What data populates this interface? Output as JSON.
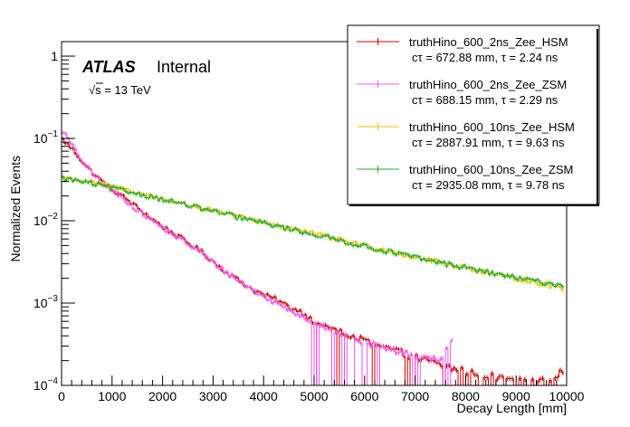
{
  "chart_data": {
    "type": "line",
    "style": "step-histogram",
    "title": "",
    "xlabel": "Decay Length [mm]",
    "ylabel": "Normalized Events",
    "xlim": [
      0,
      10000
    ],
    "ylim": [
      0.0001,
      1.5
    ],
    "yscale": "log",
    "x_ticks": [
      {
        "value": 0,
        "label": "0"
      },
      {
        "value": 1000,
        "label": "1000"
      },
      {
        "value": 2000,
        "label": "2000"
      },
      {
        "value": 3000,
        "label": "3000"
      },
      {
        "value": 4000,
        "label": "4000"
      },
      {
        "value": 5000,
        "label": "5000"
      },
      {
        "value": 6000,
        "label": "6000"
      },
      {
        "value": 7000,
        "label": "7000"
      },
      {
        "value": 8000,
        "label": "8000"
      },
      {
        "value": 9000,
        "label": "9000"
      },
      {
        "value": 10000,
        "label": "10000"
      }
    ],
    "y_ticks": [
      {
        "value": 0.0001,
        "base": "10",
        "exp": "−4"
      },
      {
        "value": 0.001,
        "base": "10",
        "exp": "−3"
      },
      {
        "value": 0.01,
        "base": "10",
        "exp": "−2"
      },
      {
        "value": 0.1,
        "base": "10",
        "exp": "−1"
      },
      {
        "value": 1,
        "base": "1",
        "exp": ""
      }
    ],
    "atlas_label": "ATLAS",
    "atlas_status": "Internal",
    "energy_label": "√s = 13 TeV",
    "legend_position": "top-right",
    "x_bin_width": 50,
    "series": [
      {
        "name": "truthHino_600_2ns_Zee_HSM",
        "subtitle": "cτ = 672.88 mm, τ = 2.24 ns",
        "color": "#cc0000",
        "x": [
          0,
          250,
          500,
          750,
          1000,
          1250,
          1500,
          1750,
          2000,
          2250,
          2500,
          2750,
          3000,
          3250,
          3500,
          3750,
          4000,
          4250,
          4500,
          4750,
          5000,
          5250,
          5500,
          5750,
          6000,
          6250,
          6500,
          6750,
          7000,
          7250,
          7500,
          7750,
          8000,
          8500,
          9000,
          9500,
          9950
        ],
        "values": [
          0.1,
          0.07,
          0.045,
          0.032,
          0.024,
          0.019,
          0.0145,
          0.011,
          0.0085,
          0.0068,
          0.0054,
          0.0043,
          0.0032,
          0.0024,
          0.0019,
          0.0015,
          0.00125,
          0.0011,
          0.0009,
          0.00078,
          0.0006,
          0.00052,
          0.00045,
          0.0004,
          0.00035,
          0.0003,
          0.00028,
          0.00025,
          0.00022,
          0.0002,
          0.00018,
          0.00016,
          0.00015,
          0.00013,
          0.00012,
          0.00011,
          0.00015
        ]
      },
      {
        "name": "truthHino_600_2ns_Zee_ZSM",
        "subtitle": "cτ = 688.15 mm, τ = 2.29 ns",
        "color": "#ee55ee",
        "x": [
          0,
          250,
          500,
          750,
          1000,
          1250,
          1500,
          1750,
          2000,
          2250,
          2500,
          2750,
          3000,
          3250,
          3500,
          3750,
          4000,
          4250,
          4500,
          4750,
          5000,
          5250,
          5500,
          5750,
          6000,
          6250,
          6500,
          6750,
          7000,
          7250,
          7500,
          7750
        ],
        "values": [
          0.13,
          0.075,
          0.045,
          0.031,
          0.023,
          0.018,
          0.0135,
          0.0105,
          0.0082,
          0.0065,
          0.0052,
          0.0042,
          0.0031,
          0.0024,
          0.0019,
          0.0015,
          0.0012,
          0.001,
          0.00085,
          0.0007,
          0.00058,
          0.0005,
          0.00044,
          0.00038,
          0.00034,
          0.0003,
          0.00027,
          0.00025,
          0.00023,
          0.00021,
          0.0002,
          0.0004
        ]
      },
      {
        "name": "truthHino_600_10ns_Zee_HSM",
        "subtitle": "cτ = 2887.91 mm, τ = 9.63 ns",
        "color": "#f2c200",
        "x": [
          0,
          250,
          500,
          750,
          1000,
          1250,
          1500,
          1750,
          2000,
          2250,
          2500,
          2750,
          3000,
          3250,
          3500,
          3750,
          4000,
          4250,
          4500,
          4750,
          5000,
          5250,
          5500,
          5750,
          6000,
          6250,
          6500,
          6750,
          7000,
          7250,
          7500,
          7750,
          8000,
          8250,
          8500,
          8750,
          9000,
          9250,
          9500,
          9750,
          9950
        ],
        "values": [
          0.034,
          0.032,
          0.03,
          0.028,
          0.026,
          0.024,
          0.022,
          0.02,
          0.0185,
          0.017,
          0.0155,
          0.0145,
          0.0132,
          0.0122,
          0.0112,
          0.0104,
          0.0096,
          0.0088,
          0.0081,
          0.0075,
          0.0069,
          0.0064,
          0.0059,
          0.0055,
          0.005,
          0.0046,
          0.0043,
          0.0039,
          0.0036,
          0.0034,
          0.0031,
          0.0029,
          0.0027,
          0.0025,
          0.0023,
          0.0021,
          0.002,
          0.0019,
          0.0017,
          0.0016,
          0.0015
        ]
      },
      {
        "name": "truthHino_600_10ns_Zee_ZSM",
        "subtitle": "cτ = 2935.08 mm, τ = 9.78 ns",
        "color": "#22aa22",
        "x": [
          0,
          250,
          500,
          750,
          1000,
          1250,
          1500,
          1750,
          2000,
          2250,
          2500,
          2750,
          3000,
          3250,
          3500,
          3750,
          4000,
          4250,
          4500,
          4750,
          5000,
          5250,
          5500,
          5750,
          6000,
          6250,
          6500,
          6750,
          7000,
          7250,
          7500,
          7750,
          8000,
          8250,
          8500,
          8750,
          9000,
          9250,
          9500,
          9750,
          9950
        ],
        "values": [
          0.033,
          0.031,
          0.029,
          0.027,
          0.025,
          0.023,
          0.0215,
          0.0198,
          0.0182,
          0.0168,
          0.0154,
          0.0142,
          0.013,
          0.012,
          0.011,
          0.0102,
          0.0094,
          0.0087,
          0.008,
          0.0074,
          0.0068,
          0.0063,
          0.0058,
          0.0053,
          0.0049,
          0.0045,
          0.0042,
          0.0039,
          0.0036,
          0.0033,
          0.0031,
          0.0029,
          0.0027,
          0.0025,
          0.0023,
          0.0022,
          0.002,
          0.0019,
          0.0018,
          0.0017,
          0.0016
        ]
      }
    ]
  }
}
